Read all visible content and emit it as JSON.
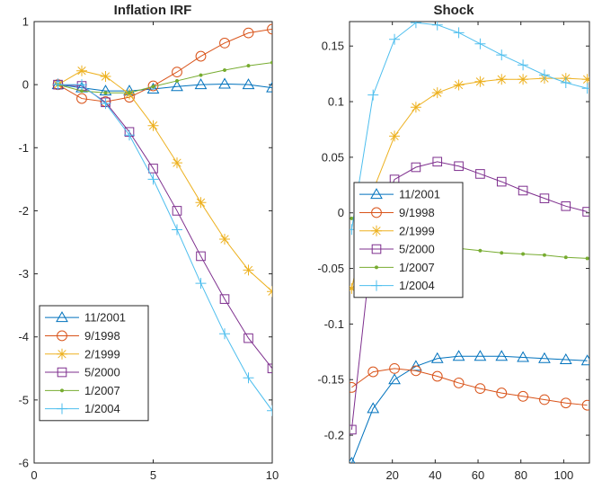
{
  "chart_data": [
    {
      "type": "line",
      "title": "Inflation IRF",
      "xlabel": "",
      "ylabel": "",
      "xlim": [
        0,
        10
      ],
      "ylim": [
        -6,
        1
      ],
      "xticks": [
        0,
        5,
        10
      ],
      "yticks": [
        1,
        0,
        -1,
        -2,
        -3,
        -4,
        -5,
        -6
      ],
      "grid": false,
      "legend_position": "bottom-left",
      "series": [
        {
          "name": "11/2001",
          "color": "#0072BD",
          "marker": "triangle",
          "x": [
            1,
            2,
            3,
            4,
            5,
            6,
            7,
            8,
            9,
            10
          ],
          "y": [
            0,
            -0.05,
            -0.1,
            -0.1,
            -0.07,
            -0.03,
            0,
            0.01,
            0,
            -0.05
          ]
        },
        {
          "name": "9/1998",
          "color": "#D95319",
          "marker": "circle",
          "x": [
            1,
            2,
            3,
            4,
            5,
            6,
            7,
            8,
            9,
            10
          ],
          "y": [
            0,
            -0.22,
            -0.27,
            -0.2,
            -0.02,
            0.2,
            0.45,
            0.66,
            0.82,
            0.88
          ]
        },
        {
          "name": "2/1999",
          "color": "#EDB120",
          "marker": "asterisk",
          "x": [
            1,
            2,
            3,
            4,
            5,
            6,
            7,
            8,
            9,
            10
          ],
          "y": [
            0,
            0.22,
            0.13,
            -0.15,
            -0.65,
            -1.24,
            -1.87,
            -2.45,
            -2.94,
            -3.28
          ]
        },
        {
          "name": "5/2000",
          "color": "#7E2F8E",
          "marker": "square",
          "x": [
            1,
            2,
            3,
            4,
            5,
            6,
            7,
            8,
            9,
            10
          ],
          "y": [
            0,
            -0.02,
            -0.28,
            -0.75,
            -1.33,
            -2.0,
            -2.72,
            -3.4,
            -4.02,
            -4.5
          ]
        },
        {
          "name": "1/2007",
          "color": "#77AC30",
          "marker": "dot",
          "x": [
            1,
            2,
            3,
            4,
            5,
            6,
            7,
            8,
            9,
            10
          ],
          "y": [
            0,
            -0.1,
            -0.13,
            -0.13,
            -0.03,
            0.06,
            0.15,
            0.23,
            0.3,
            0.35
          ]
        },
        {
          "name": "1/2004",
          "color": "#4DBEEE",
          "marker": "plus",
          "x": [
            1,
            2,
            3,
            4,
            5,
            6,
            7,
            8,
            9,
            10
          ],
          "y": [
            0,
            0,
            -0.3,
            -0.8,
            -1.5,
            -2.3,
            -3.15,
            -3.95,
            -4.65,
            -5.17
          ]
        }
      ]
    },
    {
      "type": "line",
      "title": "Shock",
      "xlabel": "",
      "ylabel": "",
      "xlim": [
        0,
        112
      ],
      "ylim": [
        -0.225,
        0.172
      ],
      "xticks": [
        20,
        40,
        60,
        80,
        100
      ],
      "yticks": [
        0.15,
        0.1,
        0.05,
        0,
        -0.05,
        -0.1,
        -0.15,
        -0.2
      ],
      "ytick_labels": [
        "0.15",
        "0.1",
        "0.05",
        "0",
        "-0.05",
        "-0.1",
        "-0.15",
        "-0.2"
      ],
      "grid": false,
      "legend_position": "center-left",
      "series": [
        {
          "name": "11/2001",
          "color": "#0072BD",
          "marker": "triangle",
          "x": [
            1,
            11,
            21,
            31,
            41,
            51,
            61,
            71,
            81,
            91,
            101,
            111
          ],
          "y": [
            -0.225,
            -0.176,
            -0.15,
            -0.138,
            -0.131,
            -0.129,
            -0.129,
            -0.129,
            -0.13,
            -0.131,
            -0.132,
            -0.133
          ]
        },
        {
          "name": "9/1998",
          "color": "#D95319",
          "marker": "circle",
          "x": [
            1,
            11,
            21,
            31,
            41,
            51,
            61,
            71,
            81,
            91,
            101,
            111
          ],
          "y": [
            -0.157,
            -0.143,
            -0.14,
            -0.142,
            -0.147,
            -0.153,
            -0.158,
            -0.162,
            -0.165,
            -0.168,
            -0.171,
            -0.173
          ]
        },
        {
          "name": "2/1999",
          "color": "#EDB120",
          "marker": "asterisk",
          "x": [
            1,
            11,
            21,
            31,
            41,
            51,
            61,
            71,
            81,
            91,
            101,
            111
          ],
          "y": [
            -0.068,
            0.02,
            0.069,
            0.095,
            0.108,
            0.115,
            0.118,
            0.12,
            0.12,
            0.121,
            0.121,
            0.12
          ]
        },
        {
          "name": "5/2000",
          "color": "#7E2F8E",
          "marker": "square",
          "x": [
            1,
            11,
            21,
            31,
            41,
            51,
            61,
            71,
            81,
            91,
            101,
            111
          ],
          "y": [
            -0.195,
            -0.02,
            0.03,
            0.041,
            0.046,
            0.042,
            0.035,
            0.028,
            0.02,
            0.013,
            0.006,
            0.001
          ]
        },
        {
          "name": "1/2007",
          "color": "#77AC30",
          "marker": "dot",
          "x": [
            1,
            11,
            21,
            31,
            41,
            51,
            61,
            71,
            81,
            91,
            101,
            111
          ],
          "y": [
            -0.005,
            -0.018,
            -0.024,
            -0.028,
            -0.03,
            -0.032,
            -0.034,
            -0.036,
            -0.037,
            -0.038,
            -0.04,
            -0.041
          ]
        },
        {
          "name": "1/2004",
          "color": "#4DBEEE",
          "marker": "plus",
          "x": [
            1,
            11,
            21,
            31,
            41,
            51,
            61,
            71,
            81,
            91,
            101,
            111
          ],
          "y": [
            -0.015,
            0.106,
            0.156,
            0.171,
            0.169,
            0.162,
            0.152,
            0.142,
            0.133,
            0.124,
            0.117,
            0.112
          ]
        }
      ]
    }
  ]
}
